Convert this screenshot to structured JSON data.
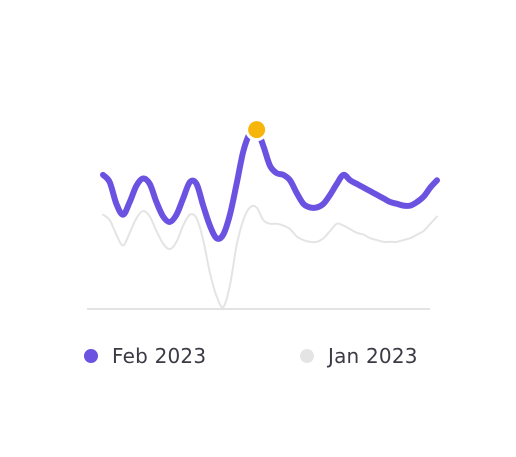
{
  "colors": {
    "feb": "#6B52E0",
    "jan": "#E4E4E4",
    "highlight": "#F5B50A",
    "baseline": "#DADADA"
  },
  "chart_data": {
    "type": "line",
    "title": "",
    "xlabel": "",
    "ylabel": "",
    "grid": false,
    "legend_position": "bottom",
    "ylim": [
      0,
      100
    ],
    "x": [
      0,
      1,
      2,
      3,
      4,
      5,
      6,
      7,
      8,
      9,
      10,
      11,
      12,
      13,
      14,
      15,
      16,
      17,
      18,
      19,
      20,
      21,
      22,
      23,
      24,
      25,
      26,
      27,
      28,
      29,
      30,
      31,
      32,
      33,
      34,
      35,
      36,
      37,
      38,
      39,
      40,
      41,
      42,
      43,
      44,
      45,
      46,
      47,
      48,
      49,
      50
    ],
    "series": [
      {
        "name": "Feb 2023",
        "values": [
          73,
          69,
          57,
          51,
          58,
          67,
          71,
          68,
          58,
          50,
          47,
          51,
          60,
          69,
          68,
          56,
          45,
          38,
          40,
          51,
          68,
          86,
          96,
          98,
          89,
          78,
          74,
          73,
          70,
          63,
          57,
          55,
          55,
          57,
          62,
          68,
          73,
          70,
          68,
          66,
          64,
          62,
          60,
          58,
          57,
          56,
          56,
          58,
          61,
          66,
          70
        ],
        "highlight_index": 23
      },
      {
        "name": "Jan 2023",
        "values": [
          51,
          48,
          40,
          34,
          41,
          49,
          53,
          50,
          42,
          35,
          32,
          36,
          45,
          51,
          49,
          37,
          19,
          6,
          0,
          12,
          34,
          48,
          55,
          55,
          48,
          46,
          46,
          45,
          43,
          39,
          37,
          36,
          36,
          38,
          42,
          46,
          45,
          43,
          41,
          40,
          38,
          37,
          36,
          36,
          36,
          37,
          38,
          40,
          42,
          46,
          50
        ]
      }
    ]
  },
  "legend": {
    "feb_label": "Feb 2023",
    "jan_label": "Jan 2023"
  }
}
